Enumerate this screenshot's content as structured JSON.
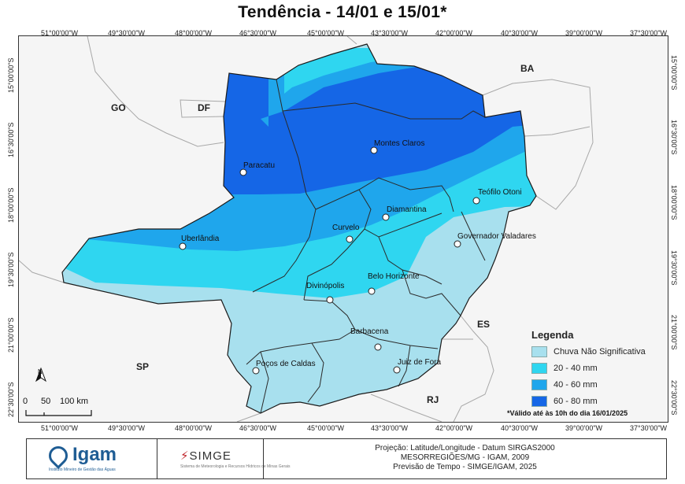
{
  "title": "Tendência - 14/01 e 15/01*",
  "coords": {
    "longitudes": [
      "51°00'00\"W",
      "49°30'00\"W",
      "48°00'00\"W",
      "46°30'00\"W",
      "45°00'00\"W",
      "43°30'00\"W",
      "42°00'00\"W",
      "40°30'00\"W",
      "39°00'00\"W",
      "37°30'00\"W"
    ],
    "latitudes": [
      "15°00'00\"S",
      "16°30'00\"S",
      "18°00'00\"S",
      "19°30'00\"S",
      "21°00'00\"S",
      "22°30'00\"S"
    ]
  },
  "states": {
    "go": "GO",
    "df": "DF",
    "ba": "BA",
    "es": "ES",
    "sp": "SP",
    "rj": "RJ"
  },
  "cities": {
    "montes_claros": "Montes Claros",
    "paracatu": "Paracatu",
    "teofilo_otoni": "Teófilo Otoni",
    "diamantina": "Diamantina",
    "curvelo": "Curvelo",
    "governador_valadares": "Governador Valadares",
    "uberlandia": "Uberlândia",
    "belo_horizonte": "Belo Horizonte",
    "divinopolis": "Divinópolis",
    "barbacena": "Barbacena",
    "juiz_de_fora": "Juiz de Fora",
    "pocos_de_caldas": "Poços de Caldas"
  },
  "legend": {
    "title": "Legenda",
    "items": [
      {
        "label": "Chuva Não Significativa",
        "color": "#a8e0ee"
      },
      {
        "label": "20 - 40 mm",
        "color": "#2fd6f0"
      },
      {
        "label": "40 - 60 mm",
        "color": "#1fa6ec"
      },
      {
        "label": "60 - 80 mm",
        "color": "#1566e6"
      }
    ]
  },
  "scale": {
    "zero": "0",
    "fifty": "50",
    "hundred": "100 km"
  },
  "north": "N",
  "note": "*Válido até às 10h do dia 16/01/2025",
  "footer": {
    "line1": "Projeção: Latitude/Longitude - Datum SIRGAS2000",
    "line2": "MESORREGIÕES/MG - IGAM, 2009",
    "line3": "Previsão de Tempo - SIMGE/IGAM, 2025",
    "igam": "Igam",
    "igam_sub": "Instituto Mineiro de Gestão das Águas",
    "simge": "SIMGE",
    "simge_sub": "Sistema de Meteorologia e Recursos Hídricos de Minas Gerais"
  }
}
